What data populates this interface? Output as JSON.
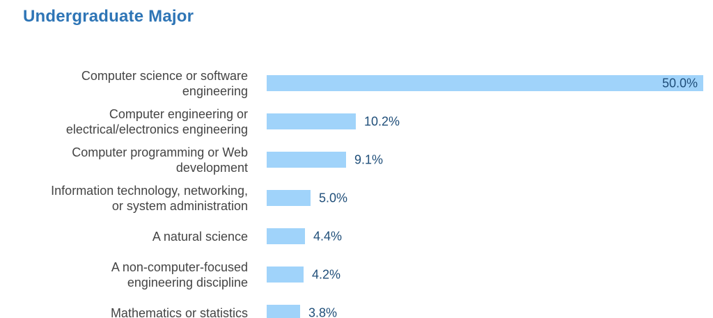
{
  "page": {
    "title": "Undergraduate Major",
    "background": "#FFFFFF"
  },
  "colors": {
    "title_text": "#2E75B6",
    "bar_fill": "#A0D3FA",
    "value_text": "#1F4E79",
    "label_text": "#444444"
  },
  "chart_data": {
    "type": "bar",
    "orientation": "horizontal",
    "title": "Undergraduate Major",
    "xlabel": "",
    "ylabel": "",
    "xlim": [
      0,
      50
    ],
    "grid": false,
    "legend": false,
    "value_format": "percent_one_decimal",
    "categories": [
      "Computer science or software engineering",
      "Computer engineering or electrical/electronics engineering",
      "Computer programming or Web development",
      "Information technology, networking, or system administration",
      "A natural science",
      "A non-computer-focused engineering discipline",
      "Mathematics or statistics"
    ],
    "values": [
      50.0,
      10.2,
      9.1,
      5.0,
      4.4,
      4.2,
      3.8
    ],
    "rows": [
      {
        "label_lines": [
          "Computer science or software",
          "engineering"
        ],
        "value": 50.0,
        "display_value": "50.0%"
      },
      {
        "label_lines": [
          "Computer engineering or",
          "electrical/electronics engineering"
        ],
        "value": 10.2,
        "display_value": "10.2%"
      },
      {
        "label_lines": [
          "Computer programming or Web",
          "development"
        ],
        "value": 9.1,
        "display_value": "9.1%"
      },
      {
        "label_lines": [
          "Information technology, networking,",
          "or system administration"
        ],
        "value": 5.0,
        "display_value": "5.0%"
      },
      {
        "label_lines": [
          "A natural science"
        ],
        "value": 4.4,
        "display_value": "4.4%"
      },
      {
        "label_lines": [
          "A non-computer-focused",
          "engineering discipline"
        ],
        "value": 4.2,
        "display_value": "4.2%"
      },
      {
        "label_lines": [
          "Mathematics or statistics"
        ],
        "value": 3.8,
        "display_value": "3.8%"
      }
    ]
  }
}
